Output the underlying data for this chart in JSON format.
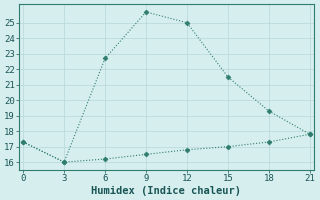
{
  "line1_x": [
    0,
    3,
    6,
    9,
    12,
    15,
    18,
    21
  ],
  "line1_y": [
    17.3,
    16.0,
    22.7,
    25.7,
    25.0,
    21.5,
    19.3,
    17.8
  ],
  "line2_x": [
    0,
    3,
    6,
    9,
    12,
    15,
    18,
    21
  ],
  "line2_y": [
    17.3,
    16.0,
    16.2,
    16.5,
    16.8,
    17.0,
    17.3,
    17.8
  ],
  "line_color": "#2e7d6e",
  "xlabel": "Humidex (Indice chaleur)",
  "ylim": [
    15.5,
    26.2
  ],
  "xlim": [
    -0.3,
    21.3
  ],
  "yticks": [
    16,
    17,
    18,
    19,
    20,
    21,
    22,
    23,
    24,
    25
  ],
  "xticks": [
    0,
    3,
    6,
    9,
    12,
    15,
    18,
    21
  ],
  "bg_color": "#d6eeee",
  "grid_color": "#b8d8d8",
  "font_color": "#1a5555",
  "marker": "D",
  "markersize": 2.5,
  "tick_fontsize": 6.5,
  "xlabel_fontsize": 7.5
}
